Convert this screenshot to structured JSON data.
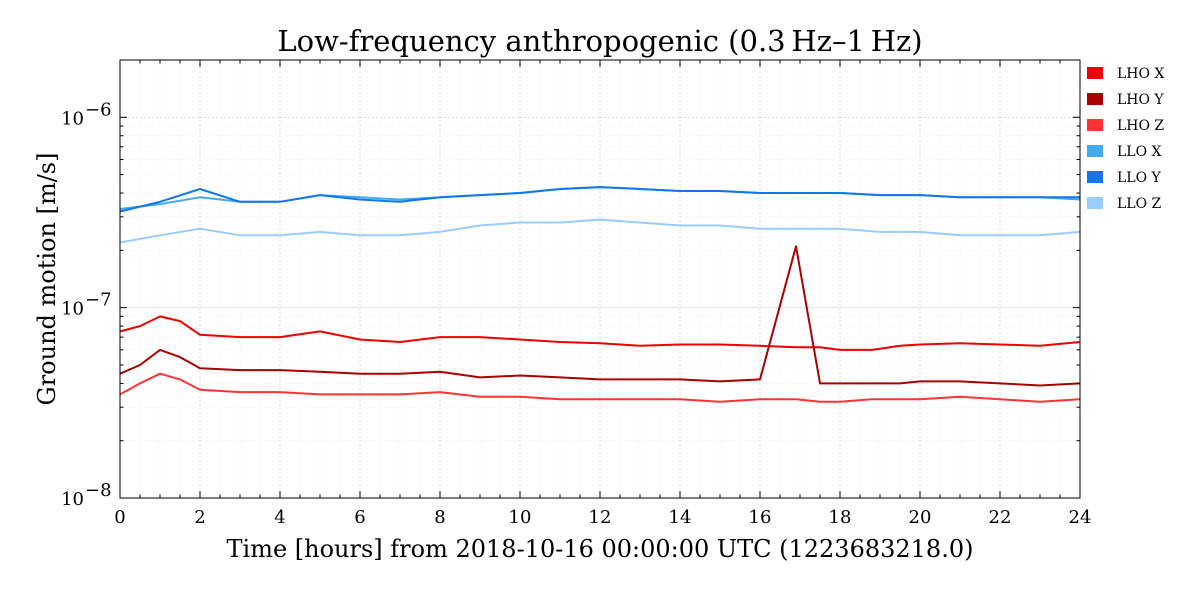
{
  "chart_data": {
    "type": "line",
    "title": "Low-frequency anthropogenic (0.3 Hz–1 Hz)",
    "xlabel": "Time [hours] from 2018-10-16 00:00:00 UTC (1223683218.0)",
    "ylabel": "Ground motion [m/s]",
    "xlim": [
      0,
      24
    ],
    "ylim": [
      1e-08,
      2e-06
    ],
    "yscale": "log",
    "grid": true,
    "legend_position": "right",
    "x_ticks": [
      0,
      2,
      4,
      6,
      8,
      10,
      12,
      14,
      16,
      18,
      20,
      22,
      24
    ],
    "x_tick_labels": [
      "0",
      "2",
      "4",
      "6",
      "8",
      "10",
      "12",
      "14",
      "16",
      "18",
      "20",
      "22",
      "24"
    ],
    "y_ticks": [
      1e-08,
      1e-07,
      1e-06
    ],
    "y_tick_labels": [
      "10",
      "10",
      "10"
    ],
    "y_tick_exponents": [
      "−8",
      "−7",
      "−6"
    ],
    "series": [
      {
        "name": "LHO X",
        "color": "#ee0000",
        "x": [
          0,
          0.5,
          1,
          1.5,
          2,
          3,
          4,
          5,
          6,
          7,
          8,
          9,
          10,
          11,
          12,
          13,
          14,
          15,
          16,
          16.9,
          17.5,
          18,
          18.8,
          19.5,
          20,
          21,
          22,
          23,
          24
        ],
        "values": [
          7.5e-08,
          8e-08,
          9e-08,
          8.5e-08,
          7.2e-08,
          7e-08,
          7e-08,
          7.5e-08,
          6.8e-08,
          6.6e-08,
          7e-08,
          7e-08,
          6.8e-08,
          6.6e-08,
          6.5e-08,
          6.3e-08,
          6.4e-08,
          6.4e-08,
          6.3e-08,
          6.2e-08,
          6.2e-08,
          6e-08,
          6e-08,
          6.3e-08,
          6.4e-08,
          6.5e-08,
          6.4e-08,
          6.3e-08,
          6.6e-08
        ]
      },
      {
        "name": "LHO Y",
        "color": "#aa0000",
        "x": [
          0,
          0.5,
          1,
          1.5,
          2,
          3,
          4,
          5,
          6,
          7,
          8,
          9,
          10,
          11,
          12,
          13,
          14,
          15,
          16,
          16.9,
          17.5,
          18,
          18.8,
          19.5,
          20,
          21,
          22,
          23,
          24
        ],
        "values": [
          4.5e-08,
          5e-08,
          6e-08,
          5.5e-08,
          4.8e-08,
          4.7e-08,
          4.7e-08,
          4.6e-08,
          4.5e-08,
          4.5e-08,
          4.6e-08,
          4.3e-08,
          4.4e-08,
          4.3e-08,
          4.2e-08,
          4.2e-08,
          4.2e-08,
          4.1e-08,
          4.2e-08,
          2.1e-07,
          4e-08,
          4e-08,
          4e-08,
          4e-08,
          4.1e-08,
          4.1e-08,
          4e-08,
          3.9e-08,
          4e-08
        ]
      },
      {
        "name": "LHO Z",
        "color": "#ff3333",
        "x": [
          0,
          0.5,
          1,
          1.5,
          2,
          3,
          4,
          5,
          6,
          7,
          8,
          9,
          10,
          11,
          12,
          13,
          14,
          15,
          16,
          16.9,
          17.5,
          18,
          18.8,
          19.5,
          20,
          21,
          22,
          23,
          24
        ],
        "values": [
          3.5e-08,
          4e-08,
          4.5e-08,
          4.2e-08,
          3.7e-08,
          3.6e-08,
          3.6e-08,
          3.5e-08,
          3.5e-08,
          3.5e-08,
          3.6e-08,
          3.4e-08,
          3.4e-08,
          3.3e-08,
          3.3e-08,
          3.3e-08,
          3.3e-08,
          3.2e-08,
          3.3e-08,
          3.3e-08,
          3.2e-08,
          3.2e-08,
          3.3e-08,
          3.3e-08,
          3.3e-08,
          3.4e-08,
          3.3e-08,
          3.2e-08,
          3.3e-08
        ]
      },
      {
        "name": "LLO X",
        "color": "#44aaee",
        "x": [
          0,
          1,
          2,
          3,
          4,
          5,
          6,
          7,
          8,
          9,
          10,
          11,
          12,
          13,
          14,
          15,
          16,
          17,
          18,
          19,
          20,
          21,
          22,
          23,
          24
        ],
        "values": [
          3.3e-07,
          3.5e-07,
          3.8e-07,
          3.6e-07,
          3.6e-07,
          3.9e-07,
          3.8e-07,
          3.7e-07,
          3.8e-07,
          3.9e-07,
          4e-07,
          4.2e-07,
          4.3e-07,
          4.2e-07,
          4.1e-07,
          4.1e-07,
          4e-07,
          4e-07,
          4e-07,
          3.9e-07,
          3.9e-07,
          3.8e-07,
          3.8e-07,
          3.8e-07,
          3.7e-07
        ]
      },
      {
        "name": "LLO Y",
        "color": "#1177ee",
        "x": [
          0,
          1,
          2,
          3,
          4,
          5,
          6,
          7,
          8,
          9,
          10,
          11,
          12,
          13,
          14,
          15,
          16,
          17,
          18,
          19,
          20,
          21,
          22,
          23,
          24
        ],
        "values": [
          3.2e-07,
          3.6e-07,
          4.2e-07,
          3.6e-07,
          3.6e-07,
          3.9e-07,
          3.7e-07,
          3.6e-07,
          3.8e-07,
          3.9e-07,
          4e-07,
          4.2e-07,
          4.3e-07,
          4.2e-07,
          4.1e-07,
          4.1e-07,
          4e-07,
          4e-07,
          4e-07,
          3.9e-07,
          3.9e-07,
          3.8e-07,
          3.8e-07,
          3.8e-07,
          3.8e-07
        ]
      },
      {
        "name": "LLO Z",
        "color": "#99ccff",
        "x": [
          0,
          1,
          2,
          3,
          4,
          5,
          6,
          7,
          8,
          9,
          10,
          11,
          12,
          13,
          14,
          15,
          16,
          17,
          18,
          19,
          20,
          21,
          22,
          23,
          24
        ],
        "values": [
          2.2e-07,
          2.4e-07,
          2.6e-07,
          2.4e-07,
          2.4e-07,
          2.5e-07,
          2.4e-07,
          2.4e-07,
          2.5e-07,
          2.7e-07,
          2.8e-07,
          2.8e-07,
          2.9e-07,
          2.8e-07,
          2.7e-07,
          2.7e-07,
          2.6e-07,
          2.6e-07,
          2.6e-07,
          2.5e-07,
          2.5e-07,
          2.4e-07,
          2.4e-07,
          2.4e-07,
          2.5e-07
        ]
      }
    ],
    "legend": [
      "LHO X",
      "LHO Y",
      "LHO Z",
      "LLO X",
      "LLO Y",
      "LLO Z"
    ]
  }
}
